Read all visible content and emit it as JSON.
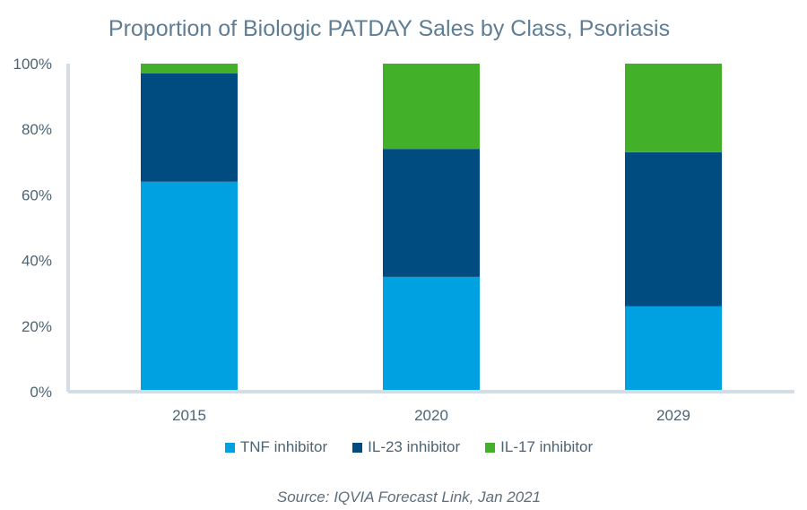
{
  "chart_data": {
    "type": "bar",
    "stacked": true,
    "title": "Proportion of Biologic PATDAY Sales by Class, Psoriasis",
    "categories": [
      "2015",
      "2020",
      "2029"
    ],
    "series": [
      {
        "name": "TNF inhibitor",
        "color": "#00a1e0",
        "values": [
          64,
          35,
          26
        ]
      },
      {
        "name": "IL-23 inhibitor",
        "color": "#004b7f",
        "values": [
          33,
          39,
          47
        ]
      },
      {
        "name": "IL-17 inhibitor",
        "color": "#43b02a",
        "values": [
          3,
          26,
          27
        ]
      }
    ],
    "ylim": [
      0,
      100
    ],
    "yticks": [
      "0%",
      "20%",
      "40%",
      "60%",
      "80%",
      "100%"
    ],
    "grid": false,
    "legend_position": "bottom"
  },
  "source_note": "Source: IQVIA Forecast Link, Jan 2021"
}
